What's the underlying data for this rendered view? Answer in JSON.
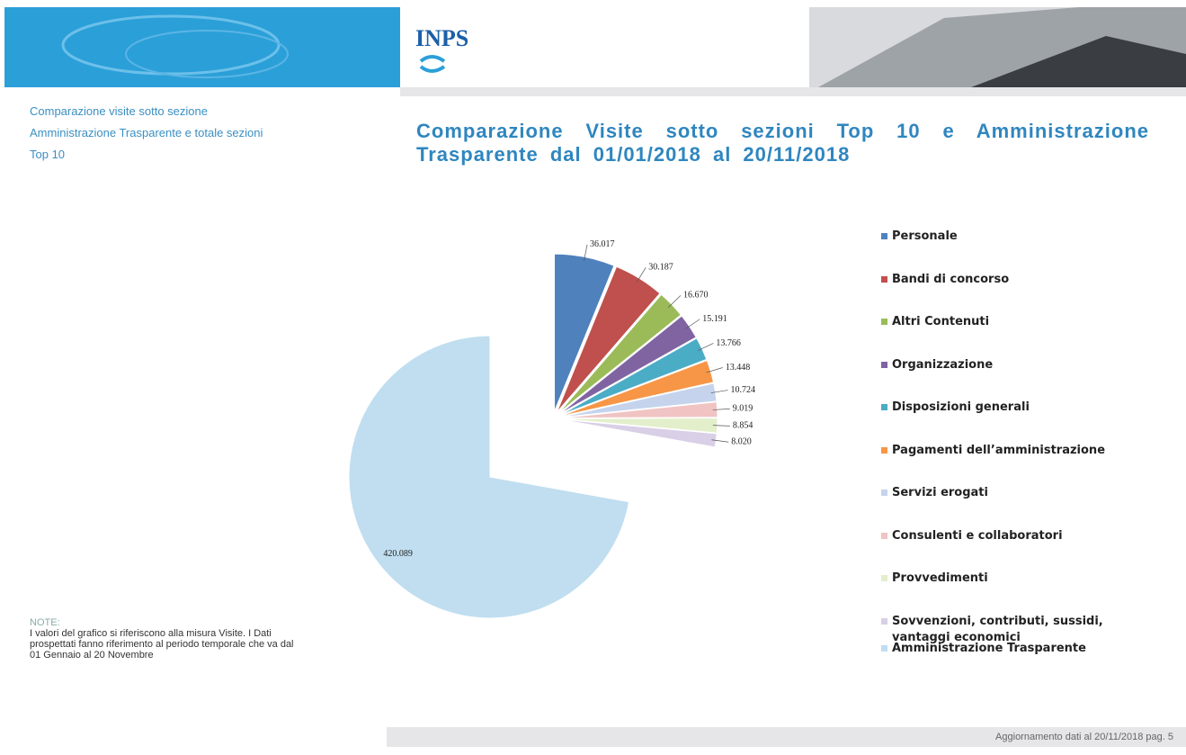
{
  "header": {
    "logo": "INPS"
  },
  "sidebar": {
    "lines": [
      "Comparazione visite sotto sezione",
      "Amministrazione Trasparente e totale sezioni",
      "Top 10"
    ]
  },
  "note": {
    "title": "NOTE:",
    "text": "I valori del grafico si riferiscono alla misura Visite. I Dati prospettati fanno riferimento al periodo temporale che va dal 01 Gennaio al 20 Novembre"
  },
  "footer": {
    "text": "Aggiornamento dati al 20/11/2018 pag. 5"
  },
  "chart_data": {
    "type": "pie",
    "title": "Comparazione Visite sotto sezioni Top 10 e Amministrazione Trasparente dal 01/01/2018 al 20/11/2018",
    "categories": [
      "Personale",
      "Bandi di concorso",
      "Altri Contenuti",
      "Organizzazione",
      "Disposizioni generali",
      "Pagamenti dell’amministrazione",
      "Servizi erogati",
      "Consulenti e collaboratori",
      "Provvedimenti",
      "Sovvenzioni, contributi, sussidi, vantaggi economici",
      "Amministrazione Trasparente"
    ],
    "values": [
      36017,
      30187,
      16670,
      15191,
      13766,
      13448,
      10724,
      9019,
      8854,
      8020,
      420089
    ],
    "value_labels": [
      "36.017",
      "30.187",
      "16.670",
      "15.191",
      "13.766",
      "13.448",
      "10.724",
      "9.019",
      "8.854",
      "8.020",
      "420.089"
    ],
    "colors": [
      "#4f81bd",
      "#c0504d",
      "#9bbb59",
      "#8064a2",
      "#4bacc6",
      "#f79646",
      "#c5d3ec",
      "#f0c4c3",
      "#e3efcb",
      "#d9cfe6",
      "#c0def0"
    ]
  }
}
